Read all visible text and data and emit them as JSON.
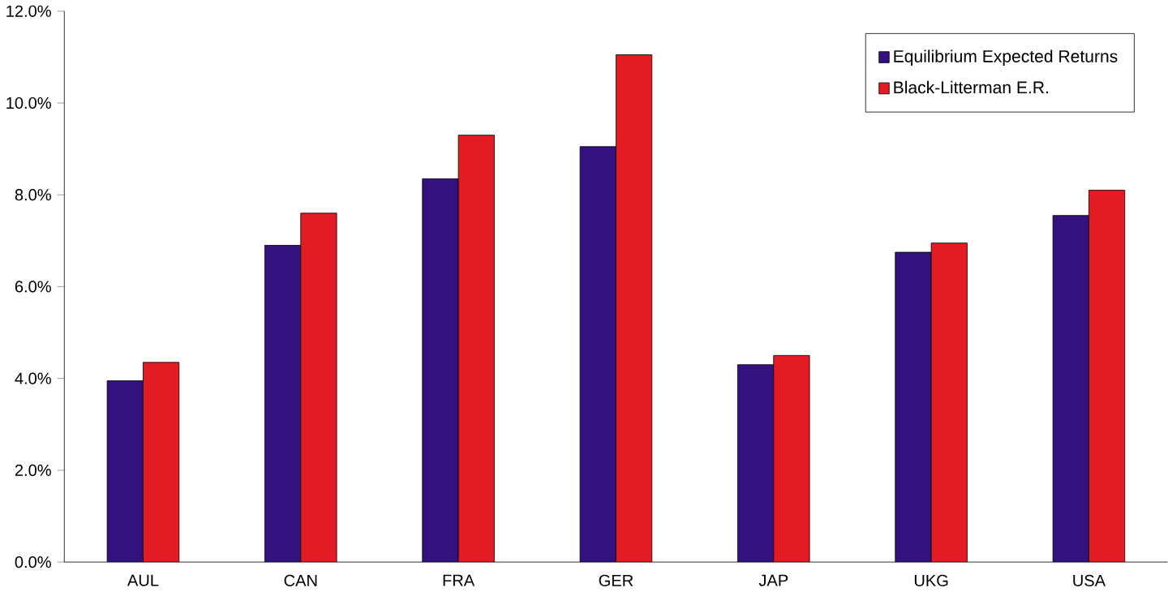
{
  "chart_data": {
    "type": "bar",
    "categories": [
      "AUL",
      "CAN",
      "FRA",
      "GER",
      "JAP",
      "UKG",
      "USA"
    ],
    "series": [
      {
        "name": "Equilibrium Expected Returns",
        "color": "#33117f",
        "values": [
          3.95,
          6.9,
          8.35,
          9.05,
          4.3,
          6.75,
          7.55
        ]
      },
      {
        "name": "Black-Litterman E.R.",
        "color": "#e31b23",
        "values": [
          4.35,
          7.6,
          9.3,
          11.05,
          4.5,
          6.95,
          8.1
        ]
      }
    ],
    "ylim": [
      0,
      12
    ],
    "yticks": [
      {
        "value": 0,
        "label": "0.0%"
      },
      {
        "value": 2,
        "label": "2.0%"
      },
      {
        "value": 4,
        "label": "4.0%"
      },
      {
        "value": 6,
        "label": "6.0%"
      },
      {
        "value": 8,
        "label": "8.0%"
      },
      {
        "value": 10,
        "label": "10.0%"
      },
      {
        "value": 12,
        "label": "12.0%"
      }
    ],
    "legend": "top right",
    "grid": false
  }
}
